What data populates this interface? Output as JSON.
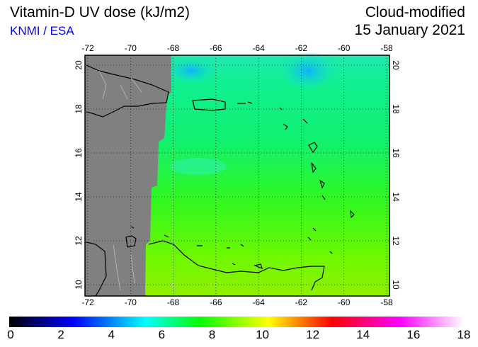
{
  "header": {
    "title": "Vitamin-D UV dose (kJ/m2)",
    "credit": "KNMI / ESA",
    "mode": "Cloud-modified",
    "date": "15 January 2021"
  },
  "map": {
    "lon_ticks": [
      "-72",
      "-70",
      "-68",
      "-66",
      "-64",
      "-62",
      "-60",
      "-58"
    ],
    "lat_ticks": [
      "10",
      "12",
      "14",
      "16",
      "18",
      "20"
    ],
    "no_data_color": "#808080"
  },
  "colorbar": {
    "ticks": [
      "0",
      "2",
      "4",
      "6",
      "8",
      "10",
      "12",
      "14",
      "16",
      "18"
    ],
    "colors": [
      "#000000",
      "#0000ff",
      "#00ffff",
      "#00ff00",
      "#ffff00",
      "#ff0000",
      "#ff00ff",
      "#ffffff"
    ]
  }
}
